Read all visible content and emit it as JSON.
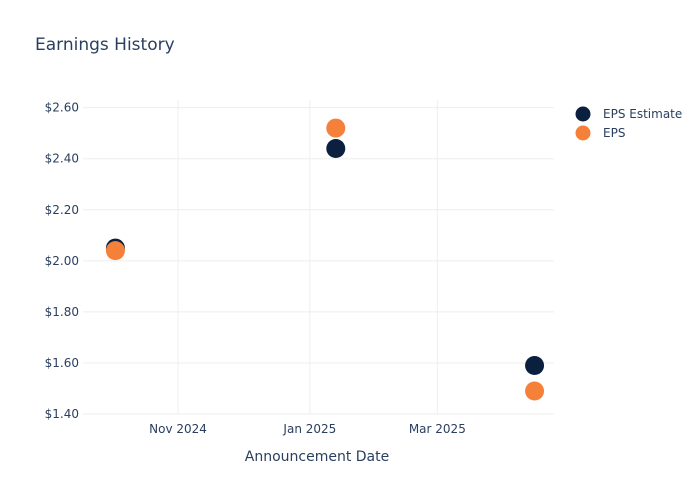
{
  "chart_data": {
    "type": "scatter",
    "title": "Earnings History",
    "xlabel": "Announcement Date",
    "ylabel": "",
    "x_range": [
      "2024-09-18",
      "2025-04-24"
    ],
    "x_ticks": [
      {
        "date": "2024-11-01",
        "label": "Nov 2024"
      },
      {
        "date": "2025-01-01",
        "label": "Jan 2025"
      },
      {
        "date": "2025-03-01",
        "label": "Mar 2025"
      }
    ],
    "ylim": [
      1.4,
      2.63
    ],
    "y_ticks": [
      {
        "value": 1.4,
        "label": "$1.40"
      },
      {
        "value": 1.6,
        "label": "$1.60"
      },
      {
        "value": 1.8,
        "label": "$1.80"
      },
      {
        "value": 2.0,
        "label": "$2.00"
      },
      {
        "value": 2.2,
        "label": "$2.20"
      },
      {
        "value": 2.4,
        "label": "$2.40"
      },
      {
        "value": 2.6,
        "label": "$2.60"
      }
    ],
    "grid": true,
    "legend_position": "top-right",
    "series": [
      {
        "name": "EPS Estimate",
        "color": "#0b1f3f",
        "points": [
          {
            "date": "2024-10-03",
            "value": 2.05
          },
          {
            "date": "2025-01-13",
            "value": 2.44
          },
          {
            "date": "2025-04-15",
            "value": 1.59
          }
        ]
      },
      {
        "name": "EPS",
        "color": "#f5803a",
        "points": [
          {
            "date": "2024-10-03",
            "value": 2.04
          },
          {
            "date": "2025-01-13",
            "value": 2.52
          },
          {
            "date": "2025-04-15",
            "value": 1.49
          }
        ]
      }
    ]
  }
}
